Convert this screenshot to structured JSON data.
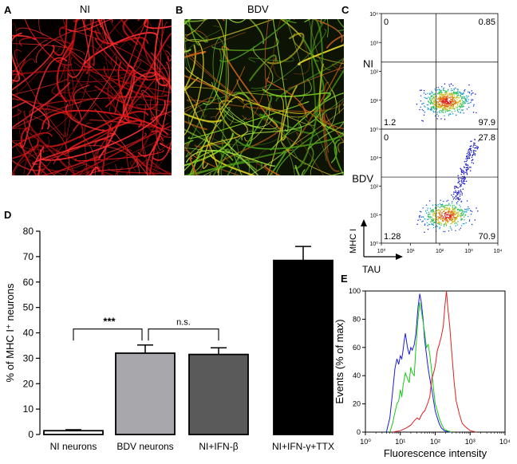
{
  "panels": {
    "A": {
      "letter": "A",
      "title": "NI"
    },
    "B": {
      "letter": "B",
      "title": "BDV"
    },
    "C": {
      "letter": "C",
      "x_axis_label": "TAU",
      "y_axis_label": "MHC I",
      "tick_labels": [
        "10⁰",
        "10¹",
        "10²",
        "10³",
        "10⁴"
      ],
      "plots": [
        {
          "name": "NI",
          "q_ul": "0",
          "q_ur": "0.85",
          "q_ll": "1.2",
          "q_lr": "97.9"
        },
        {
          "name": "BDV",
          "q_ul": "0",
          "q_ur": "27.8",
          "q_ll": "1.28",
          "q_lr": "70.9"
        }
      ]
    },
    "D": {
      "letter": "D",
      "significance": [
        "***",
        "n.s."
      ]
    },
    "E": {
      "letter": "E"
    }
  },
  "colors": {
    "panel_a_neurites": "#e01818",
    "panel_b_neurites_green": "#7ad020",
    "panel_b_neurites_yellow": "#e0d020",
    "bar_ni": "#ffffff",
    "bar_bdv": "#a8a8ac",
    "bar_ifnb": "#5a5a5a",
    "bar_ttx": "#000000",
    "hist_blue": "#1c1ce0",
    "hist_green": "#18c818",
    "hist_red": "#e02020"
  },
  "chart_data": [
    {
      "type": "bar",
      "panel": "D",
      "categories": [
        "NI neurons",
        "BDV neurons",
        "NI+IFN-β",
        "NI+IFN-γ+TTX"
      ],
      "values": [
        1.5,
        32,
        31.5,
        68.5
      ],
      "errors": [
        0.4,
        3.2,
        2.6,
        5.5
      ],
      "ylabel": "% of MHC I⁺ neurons",
      "ylim": [
        0,
        80
      ],
      "yticks": [
        0,
        10,
        20,
        30,
        40,
        50,
        60,
        70,
        80
      ]
    },
    {
      "type": "line",
      "panel": "E",
      "xlabel": "Fluorescence intensity",
      "ylabel": "Events (% of max)",
      "x_scale": "log",
      "xlim": [
        1,
        10000
      ],
      "ylim": [
        0,
        100
      ],
      "xtick_labels": [
        "10⁰",
        "10¹",
        "10²",
        "10³",
        "10⁴"
      ],
      "ytick_labels": [
        "0",
        "20",
        "40",
        "60",
        "80",
        "100"
      ],
      "series": [
        {
          "color": "blue",
          "x": [
            4,
            5,
            6,
            7,
            8,
            9,
            10,
            11,
            12,
            13,
            14,
            16,
            18,
            20,
            22,
            25,
            28,
            32,
            36,
            40,
            45,
            50,
            56,
            63,
            70,
            80,
            90,
            100,
            115,
            130,
            150,
            180,
            220,
            280
          ],
          "y": [
            0,
            10,
            28,
            45,
            52,
            48,
            54,
            52,
            58,
            65,
            70,
            60,
            55,
            60,
            58,
            62,
            70,
            88,
            98,
            92,
            80,
            65,
            55,
            45,
            38,
            30,
            22,
            15,
            10,
            6,
            3,
            1,
            0.5,
            0
          ]
        },
        {
          "color": "green",
          "x": [
            5,
            6,
            7,
            8,
            9,
            10,
            11,
            12,
            14,
            16,
            18,
            20,
            22,
            25,
            28,
            32,
            36,
            40,
            45,
            50,
            56,
            63,
            70,
            80,
            90,
            100,
            115,
            130,
            150,
            180,
            220,
            300
          ],
          "y": [
            0,
            6,
            14,
            20,
            22,
            30,
            25,
            33,
            42,
            38,
            35,
            46,
            42,
            40,
            60,
            80,
            92,
            86,
            78,
            70,
            60,
            62,
            55,
            42,
            30,
            20,
            15,
            10,
            6,
            2,
            1,
            0
          ]
        },
        {
          "color": "red",
          "x": [
            6,
            10,
            15,
            20,
            25,
            30,
            35,
            40,
            45,
            50,
            60,
            70,
            80,
            90,
            100,
            115,
            130,
            150,
            170,
            190,
            210,
            230,
            260,
            300,
            350,
            400,
            500,
            600,
            800,
            1000,
            1500
          ],
          "y": [
            0,
            1,
            3,
            5,
            8,
            10,
            9,
            12,
            14,
            15,
            20,
            25,
            38,
            42,
            47,
            58,
            62,
            68,
            75,
            90,
            100,
            88,
            75,
            55,
            35,
            22,
            12,
            6,
            3,
            1,
            0
          ]
        }
      ]
    }
  ]
}
